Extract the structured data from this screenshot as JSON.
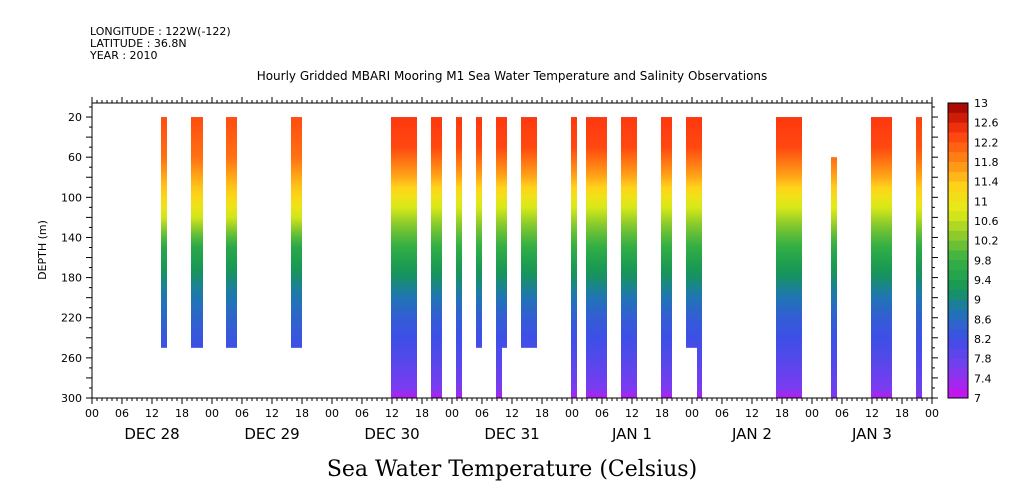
{
  "header": {
    "longitude": "LONGITUDE : 122W(-122)",
    "latitude": "LATITUDE : 36.8N",
    "year": "YEAR : 2010"
  },
  "chart_data": {
    "type": "heatmap",
    "title": "Hourly Gridded MBARI Mooring M1 Sea Water Temperature and Salinity Observations",
    "ylabel": "DEPTH (m)",
    "caption": "Sea Water Temperature (Celsius)",
    "x_unit": "hours since Dec 28 2010 00:00",
    "xlim": [
      0,
      168
    ],
    "ylim": [
      300,
      0
    ],
    "y_ticks": [
      20,
      60,
      100,
      140,
      180,
      220,
      260,
      300
    ],
    "hour_ticks": [
      "00",
      "06",
      "12",
      "18",
      "00",
      "06",
      "12",
      "18",
      "00",
      "06",
      "12",
      "18",
      "00",
      "06",
      "12",
      "18",
      "00",
      "06",
      "12",
      "18",
      "00",
      "06",
      "12",
      "18",
      "00",
      "06",
      "12",
      "18",
      "00"
    ],
    "day_labels": [
      "DEC 28",
      "DEC 29",
      "DEC 30",
      "DEC 31",
      "JAN  1",
      "JAN  2",
      "JAN  3"
    ],
    "colorbar": {
      "min": 7,
      "max": 13,
      "step": 0.2,
      "labels": [
        "13",
        "12.6",
        "12.2",
        "11.8",
        "11.4",
        "11",
        "10.6",
        "10.2",
        "9.8",
        "9.4",
        "9",
        "8.6",
        "8.2",
        "7.8",
        "7.4",
        "7"
      ]
    },
    "segments": [
      {
        "t0": 13.8,
        "t1": 15.0,
        "top": 20,
        "bottom": 250,
        "warmth": 0
      },
      {
        "t0": 19.8,
        "t1": 22.2,
        "top": 20,
        "bottom": 250,
        "warmth": 0
      },
      {
        "t0": 26.8,
        "t1": 29.0,
        "top": 20,
        "bottom": 250,
        "warmth": 0
      },
      {
        "t0": 39.8,
        "t1": 42.0,
        "top": 20,
        "bottom": 250,
        "warmth": 0
      },
      {
        "t0": 59.8,
        "t1": 65.0,
        "top": 20,
        "bottom": 300,
        "warmth": 1
      },
      {
        "t0": 67.8,
        "t1": 70.0,
        "top": 20,
        "bottom": 300,
        "warmth": 1
      },
      {
        "t0": 72.8,
        "t1": 74.0,
        "top": 20,
        "bottom": 300,
        "warmth": 1
      },
      {
        "t0": 76.8,
        "t1": 78.0,
        "top": 20,
        "bottom": 250,
        "warmth": 1
      },
      {
        "t0": 80.8,
        "t1": 82.0,
        "top": 20,
        "bottom": 300,
        "warmth": 1
      },
      {
        "t0": 82.0,
        "t1": 83.0,
        "top": 20,
        "bottom": 250,
        "warmth": 1
      },
      {
        "t0": 85.8,
        "t1": 89.0,
        "top": 20,
        "bottom": 250,
        "warmth": 1
      },
      {
        "t0": 95.8,
        "t1": 97.0,
        "top": 20,
        "bottom": 300,
        "warmth": 1
      },
      {
        "t0": 98.8,
        "t1": 103.0,
        "top": 20,
        "bottom": 300,
        "warmth": 1
      },
      {
        "t0": 105.8,
        "t1": 109.0,
        "top": 20,
        "bottom": 300,
        "warmth": 1
      },
      {
        "t0": 113.8,
        "t1": 116.0,
        "top": 20,
        "bottom": 300,
        "warmth": 1
      },
      {
        "t0": 118.8,
        "t1": 121.0,
        "top": 20,
        "bottom": 250,
        "warmth": 1
      },
      {
        "t0": 121.0,
        "t1": 122.0,
        "top": 20,
        "bottom": 300,
        "warmth": 1
      },
      {
        "t0": 136.8,
        "t1": 142.0,
        "top": 20,
        "bottom": 300,
        "warmth": 1
      },
      {
        "t0": 147.8,
        "t1": 149.0,
        "top": 60,
        "bottom": 300,
        "warmth": 0.6
      },
      {
        "t0": 155.8,
        "t1": 160.0,
        "top": 20,
        "bottom": 300,
        "warmth": 1
      },
      {
        "t0": 164.8,
        "t1": 166.0,
        "top": 20,
        "bottom": 300,
        "warmth": 0.6
      }
    ]
  }
}
